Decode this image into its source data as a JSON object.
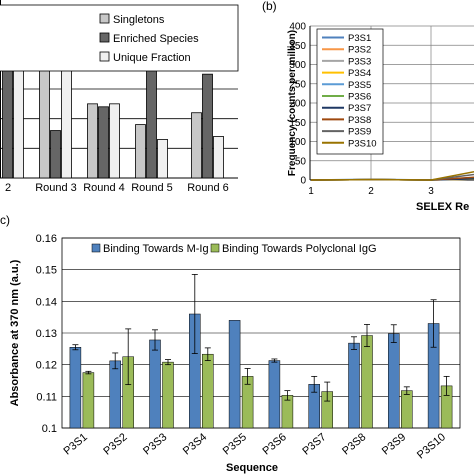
{
  "chart_data": [
    {
      "panel": "",
      "type": "bar",
      "categories": [
        "2",
        "Round 3",
        "Round 4",
        "Round 5",
        "Round 6"
      ],
      "series": [
        {
          "name": "Singletons",
          "color": "#c8c8c8",
          "values": [
            0.4,
            0.41,
            0.25,
            0.18,
            0.22
          ]
        },
        {
          "name": "Enriched Species",
          "color": "#666666",
          "values": [
            0.4,
            0.16,
            0.24,
            0.43,
            0.35
          ]
        },
        {
          "name": "Unique Fraction",
          "color": "#f0f0f0",
          "values": [
            0.4,
            0.4,
            0.25,
            0.13,
            0.14
          ]
        }
      ],
      "title": "",
      "xlabel": "",
      "ylabel": "",
      "ylim": [
        0,
        0.6
      ],
      "grid": true,
      "legend_position": "top-right"
    },
    {
      "panel": "(b)",
      "type": "line",
      "x": [
        1,
        2,
        3,
        4
      ],
      "xticks": [
        "1",
        "2",
        "3"
      ],
      "series": [
        {
          "name": "P3S1",
          "color": "#4f81bd",
          "values": [
            0,
            2,
            0,
            5
          ]
        },
        {
          "name": "P3S2",
          "color": "#f79646",
          "values": [
            0,
            1,
            0,
            4
          ]
        },
        {
          "name": "P3S3",
          "color": "#a5a5a5",
          "values": [
            0,
            1,
            0,
            3
          ]
        },
        {
          "name": "P3S4",
          "color": "#ffc000",
          "values": [
            0,
            1,
            0,
            3
          ]
        },
        {
          "name": "P3S5",
          "color": "#5b9bd5",
          "values": [
            0,
            1,
            0,
            6
          ]
        },
        {
          "name": "P3S6",
          "color": "#70ad47",
          "values": [
            0,
            1,
            0,
            8
          ]
        },
        {
          "name": "P3S7",
          "color": "#1f3864",
          "values": [
            0,
            1,
            0,
            4
          ]
        },
        {
          "name": "P3S8",
          "color": "#9e480e",
          "values": [
            0,
            1,
            0,
            10
          ]
        },
        {
          "name": "P3S9",
          "color": "#636363",
          "values": [
            0,
            1,
            0,
            20
          ]
        },
        {
          "name": "P3S10",
          "color": "#997300",
          "values": [
            0,
            1,
            0,
            30
          ]
        }
      ],
      "title": "",
      "xlabel": "SELEX Re",
      "ylabel": "Frequency (counts per million)",
      "yticks": [
        "0",
        "50",
        "100",
        "150",
        "200",
        "250",
        "300",
        "350",
        "400"
      ],
      "ylim": [
        0,
        400
      ],
      "grid": true,
      "legend_position": "top-left"
    },
    {
      "panel": "c)",
      "type": "bar",
      "categories": [
        "P3S1",
        "P3S2",
        "P3S3",
        "P3S4",
        "P3S5",
        "P3S6",
        "P3S7",
        "P3S8",
        "P3S9",
        "P3S10"
      ],
      "series": [
        {
          "name": "Binding Towards M-Ig",
          "color": "#4f81bd",
          "values": [
            0.1255,
            0.1212,
            0.1278,
            0.136,
            0.134,
            0.1213,
            0.1138,
            0.1268,
            0.1298,
            0.133
          ],
          "errors": [
            0.0008,
            0.0025,
            0.0032,
            0.0125,
            0.0,
            0.0005,
            0.0025,
            0.002,
            0.0028,
            0.0075
          ]
        },
        {
          "name": "Binding Towards Polyclonal IgG",
          "color": "#9bbb59",
          "values": [
            0.1175,
            0.1225,
            0.1208,
            0.1233,
            0.1163,
            0.1103,
            0.1115,
            0.1292,
            0.1118,
            0.1133
          ],
          "errors": [
            0.0004,
            0.0088,
            0.0008,
            0.002,
            0.0025,
            0.0015,
            0.003,
            0.0035,
            0.0012,
            0.003
          ]
        }
      ],
      "title": "",
      "xlabel": "Sequence",
      "ylabel": "Absorbance at 370 nm (a.u.)",
      "yticks": [
        "0.1",
        "0.11",
        "0.12",
        "0.13",
        "0.14",
        "0.15",
        "0.16"
      ],
      "ylim": [
        0.1,
        0.16
      ],
      "grid": true,
      "legend_position": "top"
    }
  ]
}
